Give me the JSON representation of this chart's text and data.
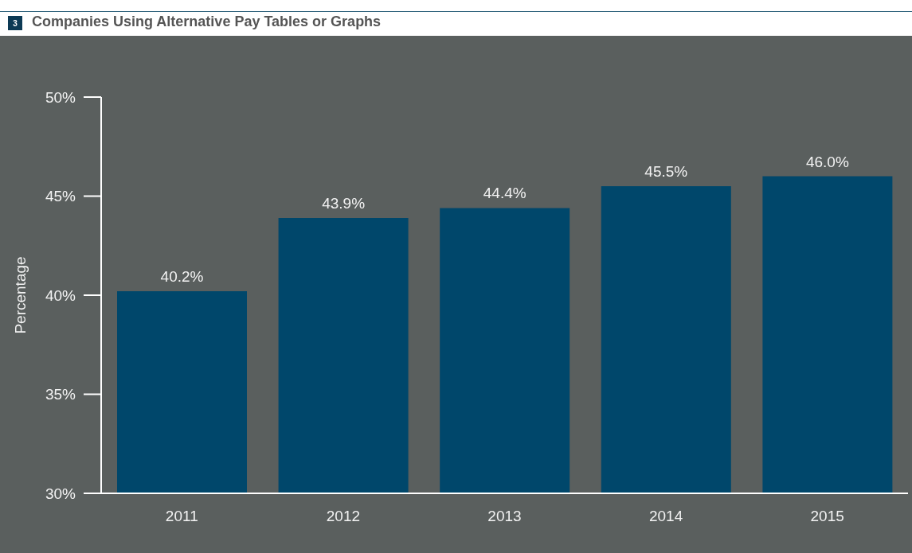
{
  "chart_data": {
    "type": "bar",
    "title": "Companies Using Alternative Pay Tables or Graphs",
    "annotations": [
      "3"
    ],
    "ylabel": "Percentage",
    "categories": [
      "2011",
      "2012",
      "2013",
      "2014",
      "2015"
    ],
    "values": [
      40.2,
      43.9,
      44.4,
      45.5,
      46.0
    ],
    "value_labels": [
      "40.2%",
      "43.9%",
      "44.4%",
      "45.5%",
      "46.0%"
    ],
    "color": "#00476b",
    "ylim": [
      30,
      50
    ],
    "yticks": [
      {
        "value": 30,
        "label": "30%"
      },
      {
        "value": 35,
        "label": "35%"
      },
      {
        "value": 40,
        "label": "40%"
      },
      {
        "value": 45,
        "label": "45%"
      },
      {
        "value": 50,
        "label": "50%"
      }
    ],
    "grid": false
  }
}
